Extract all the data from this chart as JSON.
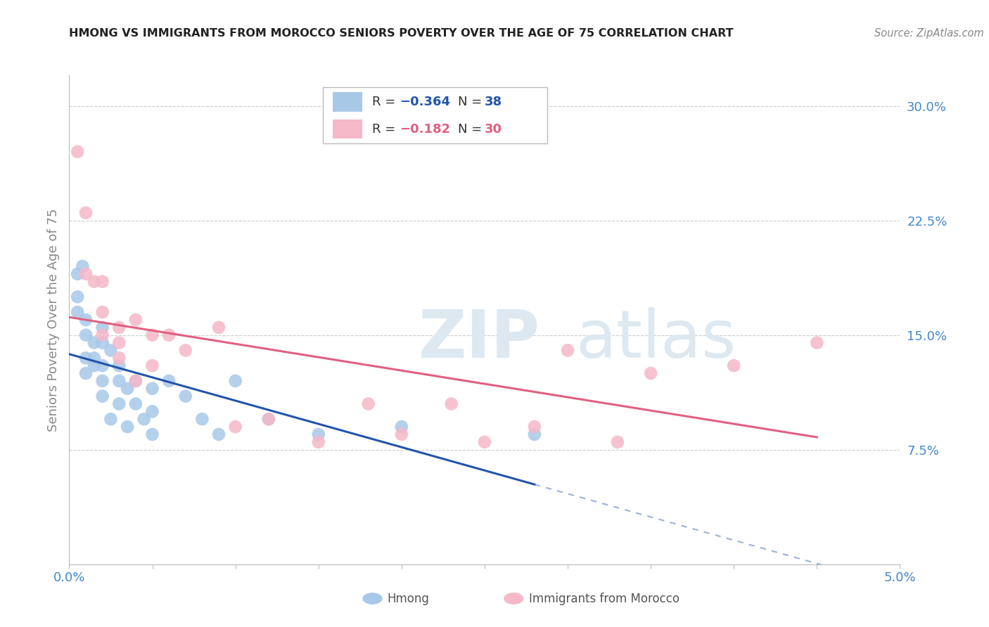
{
  "title": "HMONG VS IMMIGRANTS FROM MOROCCO SENIORS POVERTY OVER THE AGE OF 75 CORRELATION CHART",
  "source": "Source: ZipAtlas.com",
  "ylabel": "Seniors Poverty Over the Age of 75",
  "xlim": [
    0.0,
    0.05
  ],
  "ylim": [
    0.0,
    0.32
  ],
  "xticks": [
    0.0,
    0.005,
    0.01,
    0.015,
    0.02,
    0.025,
    0.03,
    0.035,
    0.04,
    0.045,
    0.05
  ],
  "xticklabels": [
    "0.0%",
    "",
    "",
    "",
    "",
    "",
    "",
    "",
    "",
    "",
    "5.0%"
  ],
  "yticks_right": [
    0.0,
    0.075,
    0.15,
    0.225,
    0.3
  ],
  "yticklabels_right": [
    "",
    "7.5%",
    "15.0%",
    "22.5%",
    "30.0%"
  ],
  "hmong_R": -0.364,
  "hmong_N": 38,
  "morocco_R": -0.182,
  "morocco_N": 30,
  "hmong_color": "#a8c8e8",
  "morocco_color": "#f5b8c8",
  "hmong_line_color": "#2255aa",
  "morocco_line_color": "#e06080",
  "hmong_x": [
    0.0005,
    0.0005,
    0.0005,
    0.0008,
    0.001,
    0.001,
    0.001,
    0.001,
    0.0015,
    0.0015,
    0.0015,
    0.002,
    0.002,
    0.002,
    0.002,
    0.002,
    0.0025,
    0.0025,
    0.003,
    0.003,
    0.003,
    0.0035,
    0.0035,
    0.004,
    0.004,
    0.0045,
    0.005,
    0.005,
    0.005,
    0.006,
    0.007,
    0.008,
    0.009,
    0.01,
    0.012,
    0.015,
    0.02,
    0.028
  ],
  "hmong_y": [
    0.19,
    0.175,
    0.165,
    0.195,
    0.16,
    0.15,
    0.135,
    0.125,
    0.145,
    0.135,
    0.13,
    0.155,
    0.145,
    0.13,
    0.12,
    0.11,
    0.14,
    0.095,
    0.13,
    0.12,
    0.105,
    0.115,
    0.09,
    0.12,
    0.105,
    0.095,
    0.115,
    0.1,
    0.085,
    0.12,
    0.11,
    0.095,
    0.085,
    0.12,
    0.095,
    0.085,
    0.09,
    0.085
  ],
  "morocco_x": [
    0.0005,
    0.001,
    0.001,
    0.0015,
    0.002,
    0.002,
    0.002,
    0.003,
    0.003,
    0.003,
    0.004,
    0.004,
    0.005,
    0.005,
    0.006,
    0.007,
    0.009,
    0.01,
    0.012,
    0.015,
    0.018,
    0.02,
    0.023,
    0.025,
    0.028,
    0.03,
    0.033,
    0.035,
    0.04,
    0.045
  ],
  "morocco_y": [
    0.27,
    0.23,
    0.19,
    0.185,
    0.185,
    0.165,
    0.15,
    0.155,
    0.145,
    0.135,
    0.16,
    0.12,
    0.15,
    0.13,
    0.15,
    0.14,
    0.155,
    0.09,
    0.095,
    0.08,
    0.105,
    0.085,
    0.105,
    0.08,
    0.09,
    0.14,
    0.08,
    0.125,
    0.13,
    0.145
  ],
  "background_color": "#ffffff",
  "grid_color": "#cccccc",
  "title_color": "#222222",
  "axis_label_color": "#888888",
  "right_tick_color": "#4488cc",
  "watermark_color": "#dde8f0"
}
